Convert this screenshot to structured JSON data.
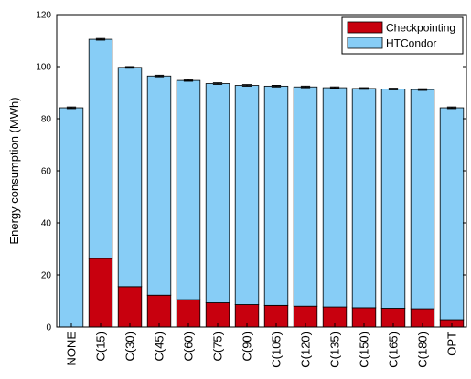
{
  "chart_data": {
    "type": "bar",
    "stacked": true,
    "title": "",
    "xlabel": "",
    "ylabel": "Energy consumption (MWh)",
    "ylim": [
      0,
      120
    ],
    "yticks": [
      0,
      20,
      40,
      60,
      80,
      100,
      120
    ],
    "categories": [
      "NONE",
      "C(15)",
      "C(30)",
      "C(45)",
      "C(60)",
      "C(75)",
      "C(90)",
      "C(105)",
      "C(120)",
      "C(135)",
      "C(150)",
      "C(165)",
      "C(180)",
      "OPT"
    ],
    "series": [
      {
        "name": "Checkpointing",
        "color": "#c8000e",
        "values": [
          0,
          26.3,
          15.5,
          12.2,
          10.5,
          9.3,
          8.6,
          8.3,
          8.0,
          7.7,
          7.4,
          7.2,
          7.0,
          2.8
        ]
      },
      {
        "name": "HTCondor",
        "color": "#87cdf6",
        "values": [
          84.2,
          84.2,
          84.2,
          84.2,
          84.2,
          84.2,
          84.2,
          84.2,
          84.2,
          84.2,
          84.2,
          84.2,
          84.2,
          81.4
        ]
      }
    ],
    "totals": [
      84.2,
      110.5,
      99.7,
      96.4,
      94.7,
      93.5,
      92.8,
      92.5,
      92.2,
      91.9,
      91.6,
      91.4,
      91.2,
      84.2
    ],
    "legend_position": "top-right",
    "grid": false,
    "error_bars": true
  }
}
